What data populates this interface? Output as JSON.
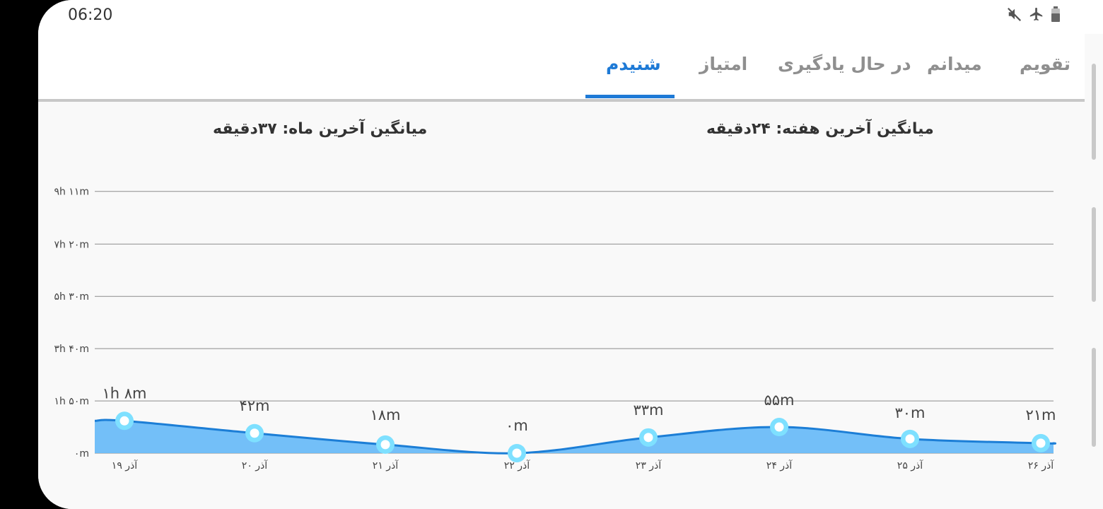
{
  "status_bar": {
    "time": "06:20",
    "icons": [
      "mute-icon",
      "airplane-mode-icon",
      "battery-icon"
    ]
  },
  "tabs": [
    {
      "label": "تقویم",
      "active": false
    },
    {
      "label": "میدانم",
      "active": false
    },
    {
      "label": "در حال یادگیری",
      "active": false
    },
    {
      "label": "امتیاز",
      "active": false
    },
    {
      "label": "شنیدم",
      "active": true
    }
  ],
  "averages": {
    "week": "میانگین آخرین هفته: ۲۴دقیقه",
    "month": "میانگین آخرین ماه: ۳۷دقیقه"
  },
  "colors": {
    "accent": "#1e7ad6",
    "area_fill": "#6cbcf8",
    "line": "#1c7ed6",
    "marker": "#7ee0ff"
  },
  "chart_data": {
    "type": "area",
    "ylim_minutes": [
      0,
      555
    ],
    "y_tick_labels": [
      "۰m",
      "۱h ۵۰m",
      "۳h ۴۰m",
      "۵h ۳۰m",
      "۷h ۲۰m",
      "۹h ۱۱m"
    ],
    "y_tick_values_minutes": [
      0,
      110,
      220,
      330,
      440,
      551
    ],
    "categories": [
      "۱۹ آذر",
      "۲۰ آذر",
      "۲۱ آذر",
      "۲۲ آذر",
      "۲۳ آذر",
      "۲۴ آذر",
      "۲۵ آذر",
      "۲۶ آذر"
    ],
    "values_minutes": [
      68,
      42,
      18,
      0,
      33,
      55,
      30,
      21
    ],
    "data_labels": [
      "۱h ۸m",
      "۴۲m",
      "۱۸m",
      "۰m",
      "۳۳m",
      "۵۵m",
      "۳۰m",
      "۲۱m"
    ],
    "grid": true
  }
}
